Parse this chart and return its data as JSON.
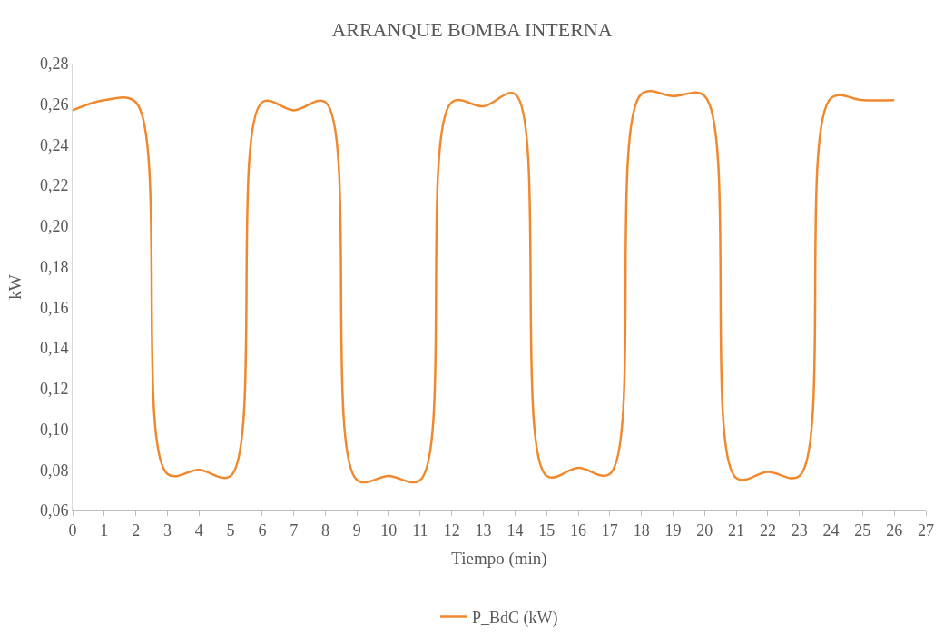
{
  "chart_data": {
    "type": "line",
    "title": "ARRANQUE BOMBA INTERNA",
    "xlabel": "Tiempo (min)",
    "ylabel": "kW",
    "x": [
      0,
      1,
      2,
      3,
      4,
      5,
      6,
      7,
      8,
      9,
      10,
      11,
      12,
      13,
      14,
      15,
      16,
      17,
      18,
      19,
      20,
      21,
      22,
      23,
      24,
      25,
      26
    ],
    "series": [
      {
        "name": "P_BdC (kW)",
        "color": "#f0892e",
        "values": [
          0.257,
          0.262,
          0.261,
          0.078,
          0.08,
          0.077,
          0.261,
          0.257,
          0.261,
          0.075,
          0.077,
          0.075,
          0.261,
          0.259,
          0.265,
          0.077,
          0.081,
          0.078,
          0.265,
          0.264,
          0.264,
          0.076,
          0.079,
          0.077,
          0.263,
          0.262,
          0.262
        ]
      }
    ],
    "xlim": [
      0,
      27
    ],
    "xticks": [
      0,
      1,
      2,
      3,
      4,
      5,
      6,
      7,
      8,
      9,
      10,
      11,
      12,
      13,
      14,
      15,
      16,
      17,
      18,
      19,
      20,
      21,
      22,
      23,
      24,
      25,
      26,
      27
    ],
    "ylim": [
      0.06,
      0.28
    ],
    "yticks": [
      {
        "value": 0.06,
        "label": "0,06"
      },
      {
        "value": 0.08,
        "label": "0,08"
      },
      {
        "value": 0.1,
        "label": "0,10"
      },
      {
        "value": 0.12,
        "label": "0,12"
      },
      {
        "value": 0.14,
        "label": "0,14"
      },
      {
        "value": 0.16,
        "label": "0,16"
      },
      {
        "value": 0.18,
        "label": "0,18"
      },
      {
        "value": 0.2,
        "label": "0,20"
      },
      {
        "value": 0.22,
        "label": "0,22"
      },
      {
        "value": 0.24,
        "label": "0,24"
      },
      {
        "value": 0.26,
        "label": "0,26"
      },
      {
        "value": 0.28,
        "label": "0,28"
      }
    ],
    "grid": false,
    "legend": "bottom",
    "marker": "none",
    "line_style": "solid"
  }
}
